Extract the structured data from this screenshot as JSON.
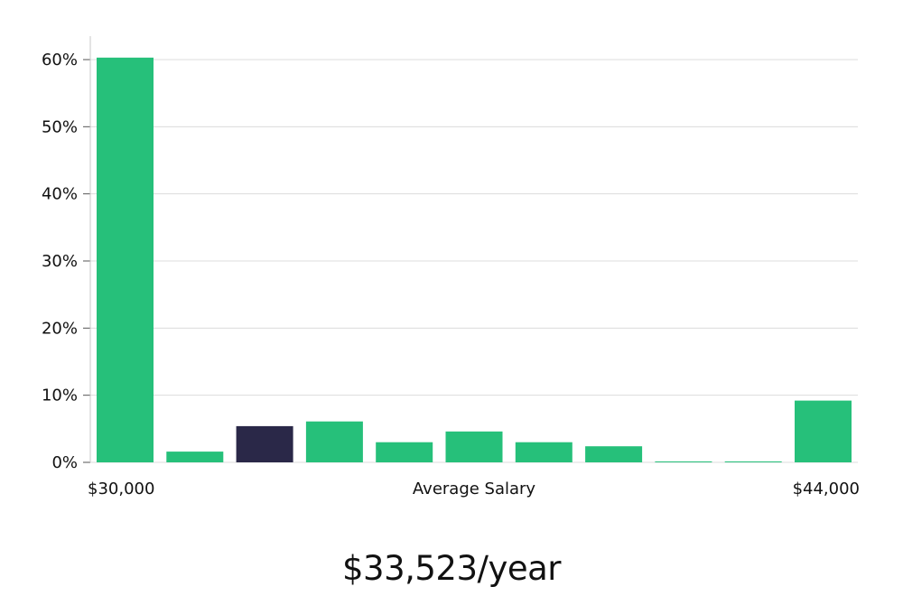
{
  "chart_data": {
    "type": "bar",
    "title": "",
    "xlabel": "Average Salary",
    "ylabel": "",
    "x_range_labels": {
      "start": "$30,000",
      "end": "$44,000"
    },
    "bins": 11,
    "values": [
      60.3,
      1.6,
      5.4,
      6.1,
      3.0,
      4.6,
      3.0,
      2.4,
      0.1,
      0.1,
      9.2
    ],
    "highlight_index": 2,
    "ylim": [
      0,
      63
    ],
    "yticks": [
      0,
      10,
      20,
      30,
      40,
      50,
      60
    ],
    "ytick_labels": [
      "0%",
      "10%",
      "20%",
      "30%",
      "40%",
      "50%",
      "60%"
    ],
    "grid": true,
    "colors": {
      "bar": "#26c07a",
      "highlight": "#2a2848",
      "grid": "#dcdcdc",
      "axis": "#c8c8c8"
    }
  },
  "summary": {
    "salary": "$33,523/year"
  }
}
